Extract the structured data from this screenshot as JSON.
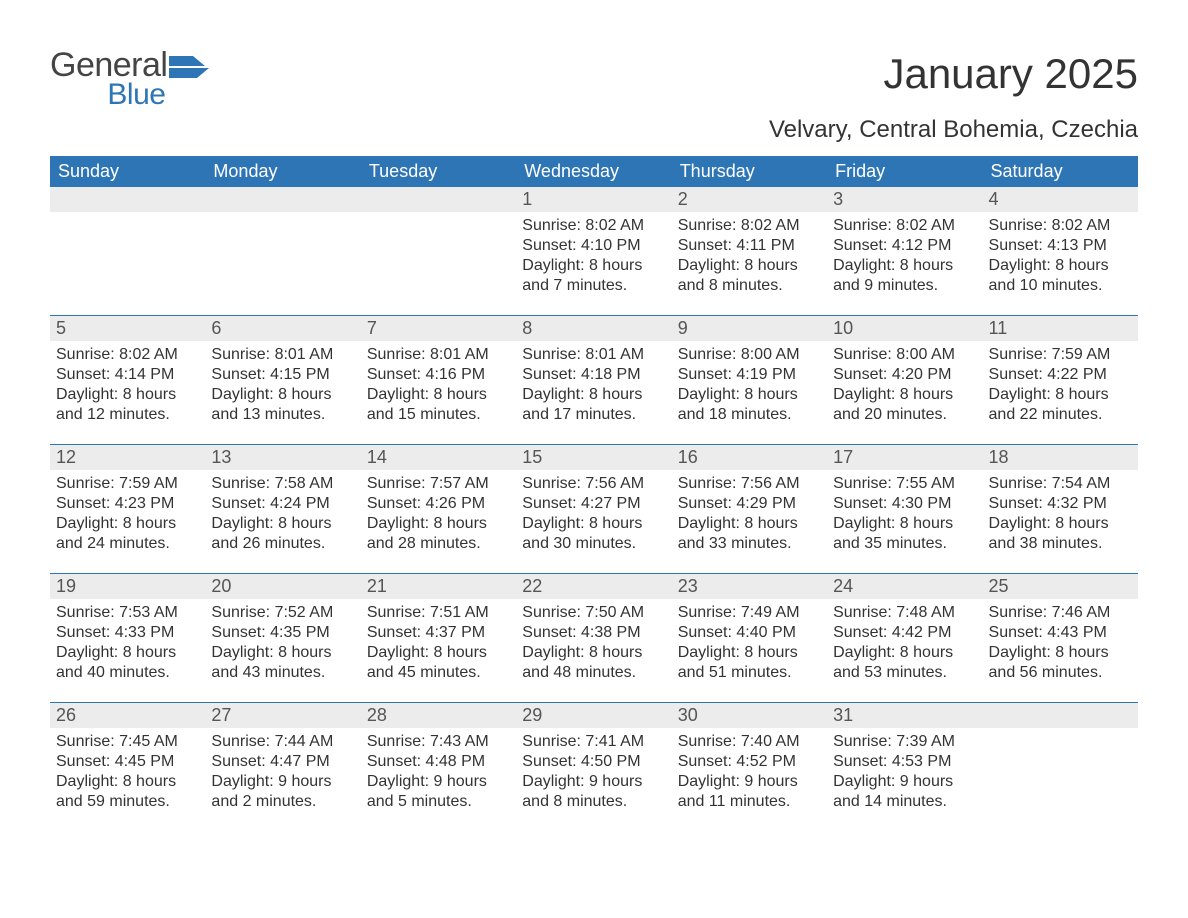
{
  "logo": {
    "text_general": "General",
    "text_blue": "Blue",
    "accent_color": "#2e75b6",
    "text_color": "#444444"
  },
  "title": {
    "month": "January 2025",
    "location": "Velvary, Central Bohemia, Czechia",
    "month_fontsize": 42,
    "location_fontsize": 24
  },
  "colors": {
    "header_bg": "#2e75b6",
    "header_fg": "#ffffff",
    "daynum_bg": "#ececec",
    "daynum_fg": "#555555",
    "body_bg": "#ffffff",
    "text": "#333333",
    "week_divider": "#2e75b6"
  },
  "typography": {
    "body_family": "Arial",
    "dow_fontsize": 18,
    "daynum_fontsize": 18,
    "body_fontsize": 16
  },
  "days_of_week": [
    "Sunday",
    "Monday",
    "Tuesday",
    "Wednesday",
    "Thursday",
    "Friday",
    "Saturday"
  ],
  "labels": {
    "sunrise": "Sunrise",
    "sunset": "Sunset",
    "daylight": "Daylight"
  },
  "weeks": [
    [
      {
        "blank": true
      },
      {
        "blank": true
      },
      {
        "blank": true
      },
      {
        "n": "1",
        "sunrise": "8:02 AM",
        "sunset": "4:10 PM",
        "daylight": "8 hours and 7 minutes."
      },
      {
        "n": "2",
        "sunrise": "8:02 AM",
        "sunset": "4:11 PM",
        "daylight": "8 hours and 8 minutes."
      },
      {
        "n": "3",
        "sunrise": "8:02 AM",
        "sunset": "4:12 PM",
        "daylight": "8 hours and 9 minutes."
      },
      {
        "n": "4",
        "sunrise": "8:02 AM",
        "sunset": "4:13 PM",
        "daylight": "8 hours and 10 minutes."
      }
    ],
    [
      {
        "n": "5",
        "sunrise": "8:02 AM",
        "sunset": "4:14 PM",
        "daylight": "8 hours and 12 minutes."
      },
      {
        "n": "6",
        "sunrise": "8:01 AM",
        "sunset": "4:15 PM",
        "daylight": "8 hours and 13 minutes."
      },
      {
        "n": "7",
        "sunrise": "8:01 AM",
        "sunset": "4:16 PM",
        "daylight": "8 hours and 15 minutes."
      },
      {
        "n": "8",
        "sunrise": "8:01 AM",
        "sunset": "4:18 PM",
        "daylight": "8 hours and 17 minutes."
      },
      {
        "n": "9",
        "sunrise": "8:00 AM",
        "sunset": "4:19 PM",
        "daylight": "8 hours and 18 minutes."
      },
      {
        "n": "10",
        "sunrise": "8:00 AM",
        "sunset": "4:20 PM",
        "daylight": "8 hours and 20 minutes."
      },
      {
        "n": "11",
        "sunrise": "7:59 AM",
        "sunset": "4:22 PM",
        "daylight": "8 hours and 22 minutes."
      }
    ],
    [
      {
        "n": "12",
        "sunrise": "7:59 AM",
        "sunset": "4:23 PM",
        "daylight": "8 hours and 24 minutes."
      },
      {
        "n": "13",
        "sunrise": "7:58 AM",
        "sunset": "4:24 PM",
        "daylight": "8 hours and 26 minutes."
      },
      {
        "n": "14",
        "sunrise": "7:57 AM",
        "sunset": "4:26 PM",
        "daylight": "8 hours and 28 minutes."
      },
      {
        "n": "15",
        "sunrise": "7:56 AM",
        "sunset": "4:27 PM",
        "daylight": "8 hours and 30 minutes."
      },
      {
        "n": "16",
        "sunrise": "7:56 AM",
        "sunset": "4:29 PM",
        "daylight": "8 hours and 33 minutes."
      },
      {
        "n": "17",
        "sunrise": "7:55 AM",
        "sunset": "4:30 PM",
        "daylight": "8 hours and 35 minutes."
      },
      {
        "n": "18",
        "sunrise": "7:54 AM",
        "sunset": "4:32 PM",
        "daylight": "8 hours and 38 minutes."
      }
    ],
    [
      {
        "n": "19",
        "sunrise": "7:53 AM",
        "sunset": "4:33 PM",
        "daylight": "8 hours and 40 minutes."
      },
      {
        "n": "20",
        "sunrise": "7:52 AM",
        "sunset": "4:35 PM",
        "daylight": "8 hours and 43 minutes."
      },
      {
        "n": "21",
        "sunrise": "7:51 AM",
        "sunset": "4:37 PM",
        "daylight": "8 hours and 45 minutes."
      },
      {
        "n": "22",
        "sunrise": "7:50 AM",
        "sunset": "4:38 PM",
        "daylight": "8 hours and 48 minutes."
      },
      {
        "n": "23",
        "sunrise": "7:49 AM",
        "sunset": "4:40 PM",
        "daylight": "8 hours and 51 minutes."
      },
      {
        "n": "24",
        "sunrise": "7:48 AM",
        "sunset": "4:42 PM",
        "daylight": "8 hours and 53 minutes."
      },
      {
        "n": "25",
        "sunrise": "7:46 AM",
        "sunset": "4:43 PM",
        "daylight": "8 hours and 56 minutes."
      }
    ],
    [
      {
        "n": "26",
        "sunrise": "7:45 AM",
        "sunset": "4:45 PM",
        "daylight": "8 hours and 59 minutes."
      },
      {
        "n": "27",
        "sunrise": "7:44 AM",
        "sunset": "4:47 PM",
        "daylight": "9 hours and 2 minutes."
      },
      {
        "n": "28",
        "sunrise": "7:43 AM",
        "sunset": "4:48 PM",
        "daylight": "9 hours and 5 minutes."
      },
      {
        "n": "29",
        "sunrise": "7:41 AM",
        "sunset": "4:50 PM",
        "daylight": "9 hours and 8 minutes."
      },
      {
        "n": "30",
        "sunrise": "7:40 AM",
        "sunset": "4:52 PM",
        "daylight": "9 hours and 11 minutes."
      },
      {
        "n": "31",
        "sunrise": "7:39 AM",
        "sunset": "4:53 PM",
        "daylight": "9 hours and 14 minutes."
      },
      {
        "blank": true
      }
    ]
  ]
}
